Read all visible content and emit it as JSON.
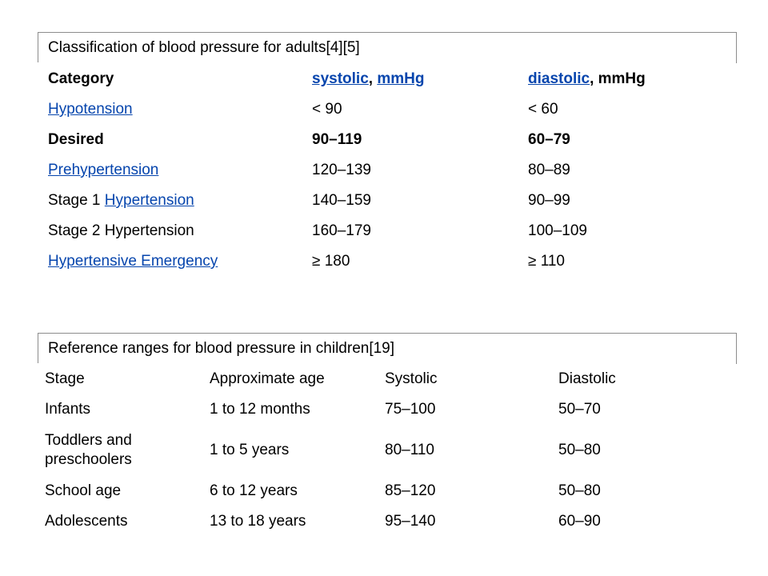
{
  "adult_table": {
    "caption": "Classification of blood pressure for adults[4][5]",
    "header": {
      "category": "Category",
      "systolic_link": "systolic",
      "separator": ", ",
      "mmhg_link": "mmHg",
      "diastolic_link": "diastolic",
      "diastolic_unit": ", mmHg"
    },
    "rows": [
      {
        "category": "Hypotension",
        "systolic": "< 90",
        "diastolic": "< 60"
      },
      {
        "category": "Desired",
        "systolic": "90–119",
        "diastolic": "60–79"
      },
      {
        "category": "Prehypertension",
        "systolic": "120–139",
        "diastolic": "80–89"
      },
      {
        "category_prefix": "Stage 1 ",
        "category": "Hypertension",
        "systolic": "140–159",
        "diastolic": "90–99"
      },
      {
        "category": "Stage 2 Hypertension",
        "systolic": "160–179",
        "diastolic": "100–109"
      },
      {
        "category": "Hypertensive Emergency",
        "systolic": "≥ 180",
        "diastolic": "≥ 110"
      }
    ]
  },
  "children_table": {
    "caption": "Reference ranges for blood pressure in children[19]",
    "header": [
      "Stage",
      "Approximate age",
      "Systolic",
      "Diastolic"
    ],
    "rows": [
      [
        "Infants",
        "1 to 12 months",
        "75–100",
        "50–70"
      ],
      [
        "Toddlers and preschoolers",
        "1 to 5 years",
        "80–110",
        "50–80"
      ],
      [
        "School age",
        "6 to 12 years",
        "85–120",
        "50–80"
      ],
      [
        "Adolescents",
        "13 to 18 years",
        "95–140",
        "60–90"
      ]
    ]
  },
  "colors": {
    "link": "#0645ad",
    "border": "#8c8c8c"
  }
}
